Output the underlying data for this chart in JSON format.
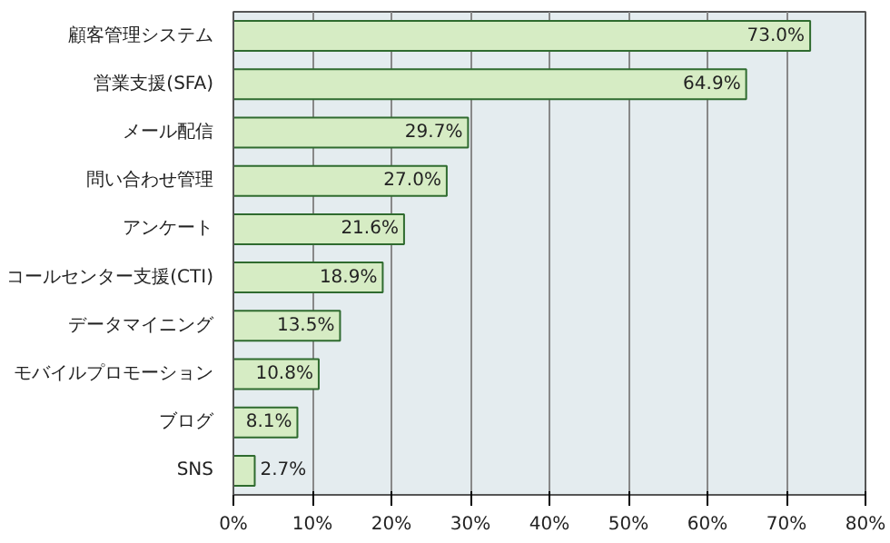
{
  "chart_data": {
    "type": "bar",
    "orientation": "horizontal",
    "categories": [
      "顧客管理システム",
      "営業支援(SFA)",
      "メール配信",
      "問い合わせ管理",
      "アンケート",
      "コールセンター支援(CTI)",
      "データマイニング",
      "モバイルプロモーション",
      "ブログ",
      "SNS"
    ],
    "values": [
      73.0,
      64.9,
      29.7,
      27.0,
      21.6,
      18.9,
      13.5,
      10.8,
      8.1,
      2.7
    ],
    "value_labels": [
      "73.0%",
      "64.9%",
      "29.7%",
      "27.0%",
      "21.6%",
      "18.9%",
      "13.5%",
      "10.8%",
      "8.1%",
      "2.7%"
    ],
    "color": "#d6ecc4",
    "xlim": [
      0,
      80
    ],
    "xticks": [
      {
        "value": 0,
        "label": "0%"
      },
      {
        "value": 10,
        "label": "10%"
      },
      {
        "value": 20,
        "label": "20%"
      },
      {
        "value": 30,
        "label": "30%"
      },
      {
        "value": 40,
        "label": "40%"
      },
      {
        "value": 50,
        "label": "50%"
      },
      {
        "value": 60,
        "label": "60%"
      },
      {
        "value": 70,
        "label": "70%"
      },
      {
        "value": 80,
        "label": "80%"
      }
    ],
    "grid": "x"
  }
}
